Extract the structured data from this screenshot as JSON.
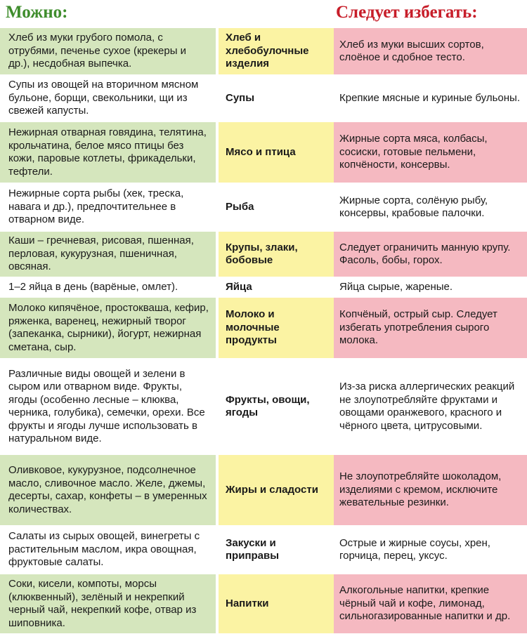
{
  "header": {
    "allowed": "Можно:",
    "avoid": "Следует избегать:"
  },
  "rows": [
    {
      "category": "Хлеб и хлебобулочные изделия",
      "allowed": "Хлеб из муки грубого помола, с отрубями, печенье сухое (крекеры и др.), несдобная выпечка.",
      "avoid": "Хлеб из муки высших сортов, слоёное и сдобное тесто."
    },
    {
      "category": "Супы",
      "allowed": "Супы из овощей на вторичном мясном бульоне, борщи, свекольники, щи из свежей капусты.",
      "avoid": "Крепкие мясные и куриные бульоны."
    },
    {
      "category": "Мясо и птица",
      "allowed": "Нежирная отварная говядина, телятина, крольчатина, белое мясо птицы без кожи, паровые котлеты, фрикадельки, тефтели.",
      "avoid": "Жирные сорта мяса, колбасы, сосиски, готовые пельмени, копчёности, консервы."
    },
    {
      "category": "Рыба",
      "allowed": "Нежирные сорта рыбы (хек, треска, навага и др.), предпочтительнее в отварном виде.",
      "avoid": "Жирные сорта, солёную рыбу, консервы, крабовые палочки."
    },
    {
      "category": "Крупы, злаки, бобовые",
      "allowed": "Каши – гречневая, рисовая, пшенная, перловая, кукурузная, пшеничная, овсяная.",
      "avoid": "Следует ограничить манную крупу. Фасоль, бобы, горох."
    },
    {
      "category": "Яйца",
      "allowed": "1–2 яйца в день (варёные, омлет).",
      "avoid": "Яйца сырые, жареные."
    },
    {
      "category": "Молоко и молочные продукты",
      "allowed": "Молоко кипячёное, простокваша, кефир, ряженка, варенец, нежирный творог (запеканка, сырники), йогурт, нежирная сметана, сыр.",
      "avoid": "Копчёный, острый сыр. Следует избегать употребления сырого молока."
    },
    {
      "category": "Фрукты, овощи, ягоды",
      "allowed": "Различные виды овощей и зелени в сыром или отварном виде. Фрукты, ягоды (особенно лесные – клюква, черника, голубика), семечки, орехи. Все фрукты и ягоды лучше использовать в натуральном виде.",
      "avoid": "Из-за риска аллергических реакций не злоупотребляйте фруктами и овощами оранжевого, красного и чёрного цвета, цитрусовыми."
    },
    {
      "category": "Жиры и сладости",
      "allowed": "Оливковое, кукурузное, подсолнечное масло, сливочное масло. Желе, джемы, десерты, сахар, конфеты – в умеренных количествах.",
      "avoid": "Не злоупотребляйте шоколадом, изделиями с кремом, исключите жевательные резинки."
    },
    {
      "category": "Закуски и приправы",
      "allowed": "Салаты из сырых овощей, винегреты с растительным маслом, икра овощная, фруктовые салаты.",
      "avoid": "Острые и жирные соусы, хрен, горчица, перец, уксус."
    },
    {
      "category": "Напитки",
      "allowed": "Соки, кисели, компоты, морсы (клюквенный), зелёный и некрепкий черный чай, некрепкий кофе, отвар из шиповника.",
      "avoid": "Алкогольные напитки, крепкие чёрный чай и кофе, лимонад, сильногазированные напитки и др."
    }
  ],
  "colors": {
    "allowed_bg": "#d5e6bd",
    "category_bg": "#fbf3a3",
    "avoid_bg": "#f5b9c1",
    "allowed_heading": "#3f8d2d",
    "avoid_heading": "#c71e2a"
  }
}
